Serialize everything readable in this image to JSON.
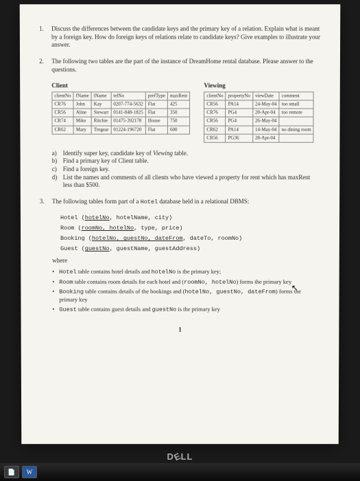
{
  "questions": {
    "q1": {
      "num": "1.",
      "text": "Discuss the differences between the candidate keys and the primary key of a relation. Explain what is meant by a foreign key. How do foreign keys of relations relate to candidate keys? Give examples to illustrate your answer."
    },
    "q2": {
      "num": "2.",
      "text": "The following two tables are the part of the instance of DreamHome rental database. Please answer to the questions."
    },
    "q3": {
      "num": "3.",
      "text_prefix": "The following tables form part of a ",
      "text_code": "Hotel",
      "text_suffix": " database held in a relational DBMS:"
    }
  },
  "client_table": {
    "title": "Client",
    "headers": [
      "clientNo",
      "fName",
      "lName",
      "telNo",
      "prefType",
      "maxRent"
    ],
    "rows": [
      [
        "CR76",
        "John",
        "Kay",
        "0207-774-5632",
        "Flat",
        "425"
      ],
      [
        "CR56",
        "Aline",
        "Stewart",
        "0141-848-1825",
        "Flat",
        "350"
      ],
      [
        "CR74",
        "Mike",
        "Ritchie",
        "01475-392178",
        "House",
        "750"
      ],
      [
        "CR62",
        "Mary",
        "Tregear",
        "01224-196720",
        "Flat",
        "600"
      ]
    ]
  },
  "viewing_table": {
    "title": "Viewing",
    "headers": [
      "clientNo",
      "propertyNo",
      "viewDate",
      "comment"
    ],
    "rows": [
      [
        "CR56",
        "PA14",
        "24-May-04",
        "too small"
      ],
      [
        "CR76",
        "PG4",
        "20-Apr-04",
        "too remote"
      ],
      [
        "CR56",
        "PG4",
        "26-May-04",
        ""
      ],
      [
        "CR62",
        "PA14",
        "14-May-04",
        "no dining room"
      ],
      [
        "CR56",
        "PG36",
        "28-Apr-04",
        ""
      ]
    ]
  },
  "subq": {
    "a": {
      "lbl": "a)",
      "text_prefix": "Identify super key, candidate key of ",
      "text_em": "Viewing",
      "text_suffix": " table."
    },
    "b": {
      "lbl": "b)",
      "text": "Find a primary key of Client table."
    },
    "c": {
      "lbl": "c)",
      "text": "Find a foreign key."
    },
    "d": {
      "lbl": "d)",
      "text": "List the names and comments of all clients who have viewed a property for rent which has maxRent less than $500."
    }
  },
  "schemas": {
    "hotel": "Hotel (hotelNo, hotelName, city)",
    "room": "Room (roomNo, hotelNo, type, price)",
    "booking": "Booking (hotelNo, guestNo, dateFrom, dateTo, roomNo)",
    "guest": "Guest (guestNo, guestName, guestAddress)"
  },
  "schema_underlines": {
    "hotel_key": "hotelNo",
    "room_key": "roomNo, hotelNo",
    "booking_key": "hotelNo, guestNo, dateFrom",
    "guest_key": "guestNo"
  },
  "where_label": "where",
  "bullets": {
    "b1_a": "Hotel",
    "b1_b": " table contains hotel details and ",
    "b1_c": "hotelNo",
    "b1_d": " is the primary key;",
    "b2_a": "Room",
    "b2_b": " table contains room details for each hotel and (",
    "b2_c": "roomNo, hotelNo",
    "b2_d": ") forms the primary key",
    "b3_a": "Booking",
    "b3_b": " table contains details of the bookings and (",
    "b3_c": "hotelNo, guestNo, dateFrom",
    "b3_d": ") forms the primary key",
    "b4_a": "Guest",
    "b4_b": " table contains guest details and ",
    "b4_c": "guestNo",
    "b4_d": " is the primary key"
  },
  "pagenum": "1",
  "brand": "DELL",
  "cursor_glyph": "↖"
}
